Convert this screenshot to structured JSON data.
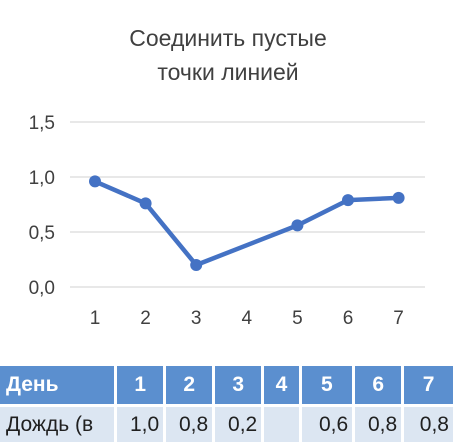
{
  "chart_data": {
    "type": "line",
    "title_lines": [
      "Соединить пустые",
      "точки линией"
    ],
    "categories": [
      "1",
      "2",
      "3",
      "4",
      "5",
      "6",
      "7"
    ],
    "values": [
      0.96,
      0.76,
      0.2,
      null,
      0.56,
      0.79,
      0.81
    ],
    "ylim": [
      0,
      1.5
    ],
    "yticks": [
      "0,0",
      "0,5",
      "1,0",
      "1,5"
    ],
    "grid": true,
    "legend": "none",
    "line_color": "#4472c4",
    "gap_handling": "connect"
  },
  "table": {
    "header_label": "День",
    "header_cells": [
      "1",
      "2",
      "3",
      "4",
      "5",
      "6",
      "7"
    ],
    "row_label": "Дождь (в",
    "row_cells": [
      "1,0",
      "0,8",
      "0,2",
      "",
      "0,6",
      "0,8",
      "0,8"
    ],
    "header_color": "#5b8fcf",
    "row_color": "#dce6f2"
  }
}
